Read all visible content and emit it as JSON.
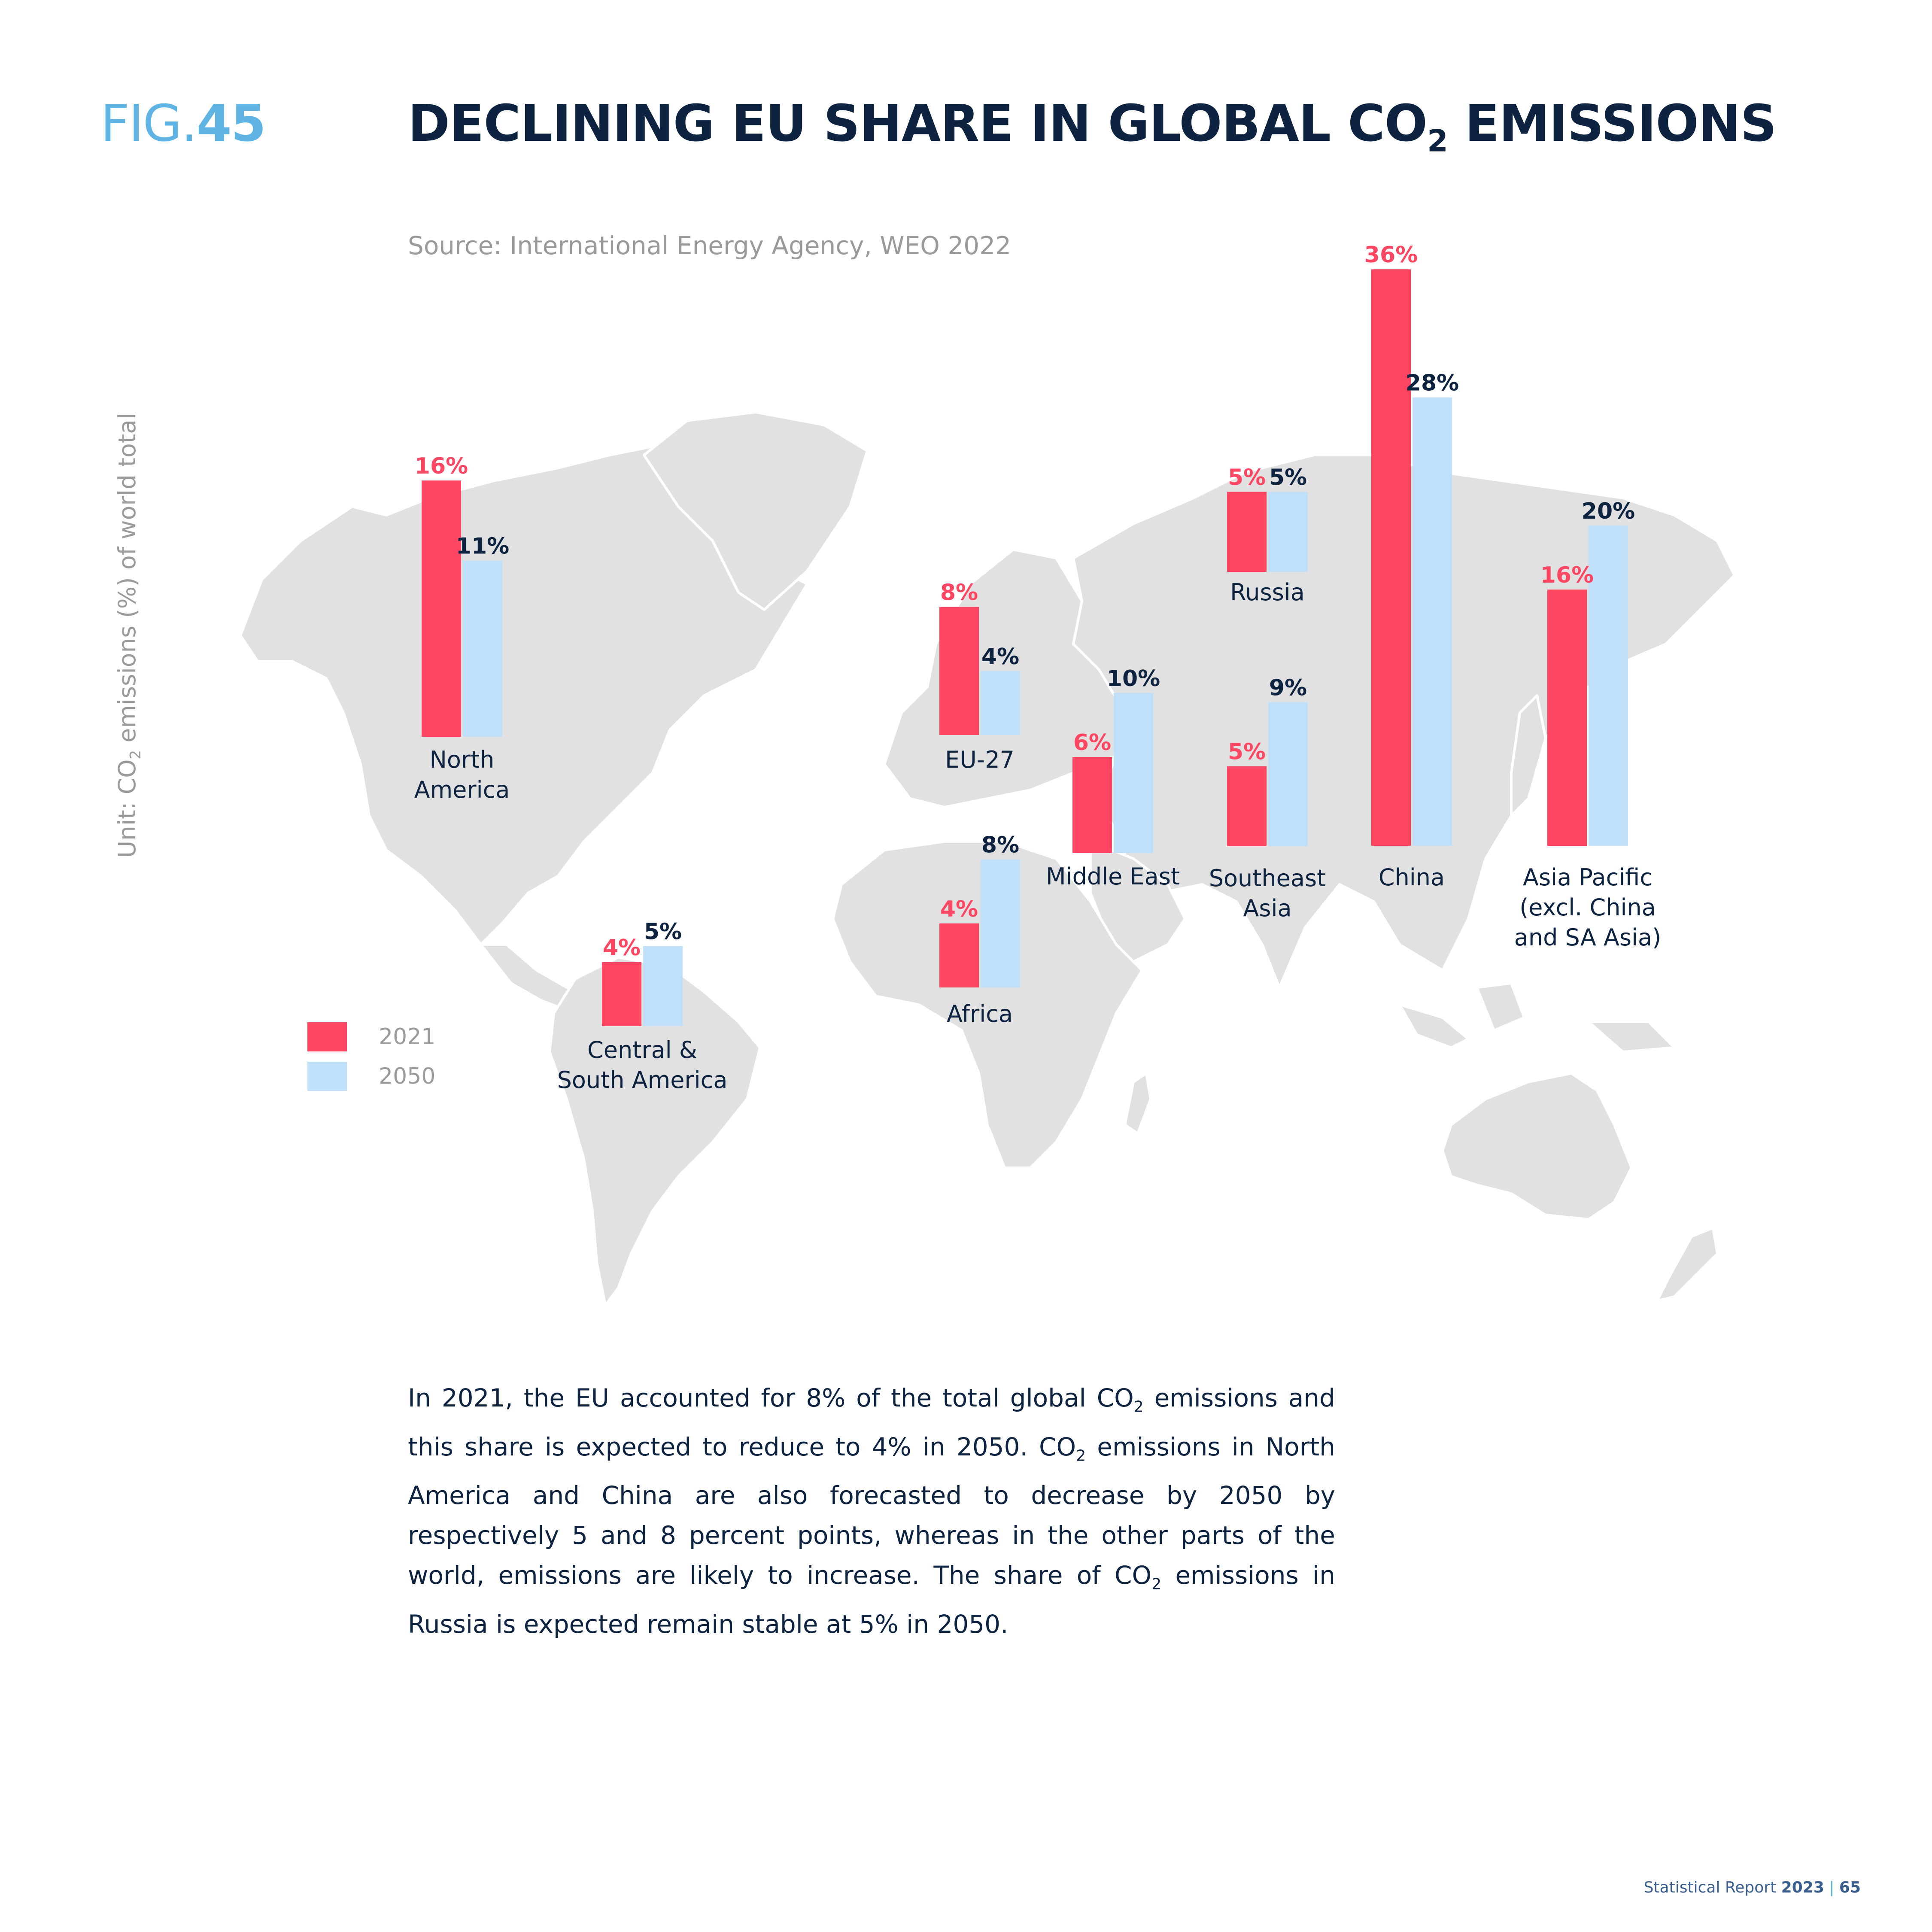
{
  "header": {
    "fig_prefix": "FIG.",
    "fig_number": "45",
    "title_before": "DECLINING EU SHARE IN GLOBAL CO",
    "title_sub": "2",
    "title_after": " EMISSIONS",
    "source": "Source: International Energy Agency, WEO 2022",
    "unit_before": "Unit: CO",
    "unit_sub": "2",
    "unit_after": " emissions (%) of world total"
  },
  "colors": {
    "accent_red": "#ff4763",
    "accent_blue": "#c0dff8",
    "map": "#e1e1e1",
    "navy": "#0d2340",
    "fig_blue": "#5fb4e4"
  },
  "chart_data": {
    "type": "bar",
    "series": [
      {
        "name": "2021",
        "color": "#ff4763"
      },
      {
        "name": "2050",
        "color": "#c0dff8"
      }
    ],
    "regions": [
      {
        "name": "North America",
        "label_lines": [
          "North",
          "America"
        ],
        "v2021": 16,
        "v2050": 11,
        "label2021": "16%",
        "label2050": "11%"
      },
      {
        "name": "Central & South America",
        "label_lines": [
          "Central &",
          "South America"
        ],
        "v2021": 4,
        "v2050": 5,
        "label2021": "4%",
        "label2050": "5%"
      },
      {
        "name": "EU-27",
        "label_lines": [
          "EU-27"
        ],
        "v2021": 8,
        "v2050": 4,
        "label2021": "8%",
        "label2050": "4%"
      },
      {
        "name": "Africa",
        "label_lines": [
          "Africa"
        ],
        "v2021": 4,
        "v2050": 8,
        "label2021": "4%",
        "label2050": "8%"
      },
      {
        "name": "Middle East",
        "label_lines": [
          "Middle East"
        ],
        "v2021": 6,
        "v2050": 10,
        "label2021": "6%",
        "label2050": "10%"
      },
      {
        "name": "Russia",
        "label_lines": [
          "Russia"
        ],
        "v2021": 5,
        "v2050": 5,
        "label2021": "5%",
        "label2050": "5%"
      },
      {
        "name": "Southeast Asia",
        "label_lines": [
          "Southeast",
          "Asia"
        ],
        "v2021": 5,
        "v2050": 9,
        "label2021": "5%",
        "label2050": "9%"
      },
      {
        "name": "China",
        "label_lines": [
          "China"
        ],
        "v2021": 36,
        "v2050": 28,
        "label2021": "36%",
        "label2050": "28%"
      },
      {
        "name": "Asia Pacific (excl. China and SA Asia)",
        "label_lines": [
          "Asia Pacific",
          "(excl. China",
          "and SA Asia)"
        ],
        "v2021": 16,
        "v2050": 20,
        "label2021": "16%",
        "label2050": "20%"
      }
    ]
  },
  "body": {
    "p1": "In 2021, the EU accounted for 8% of the total global CO",
    "p1_sub": "2",
    "p2": " emissions and this share is expected to reduce to 4% in 2050. CO",
    "p2_sub": "2",
    "p3": " emissions in North America and China are also forecasted to decrease by 2050 by respectively 5 and 8 percent points, whereas in the other parts of the world, emissions are likely to increase. The share of CO",
    "p3_sub": "2",
    "p4": " emissions in Russia is expected remain stable at 5% in 2050."
  },
  "footer": {
    "report": "Statistical Report ",
    "year": "2023",
    "sep": " | ",
    "page": "65"
  }
}
